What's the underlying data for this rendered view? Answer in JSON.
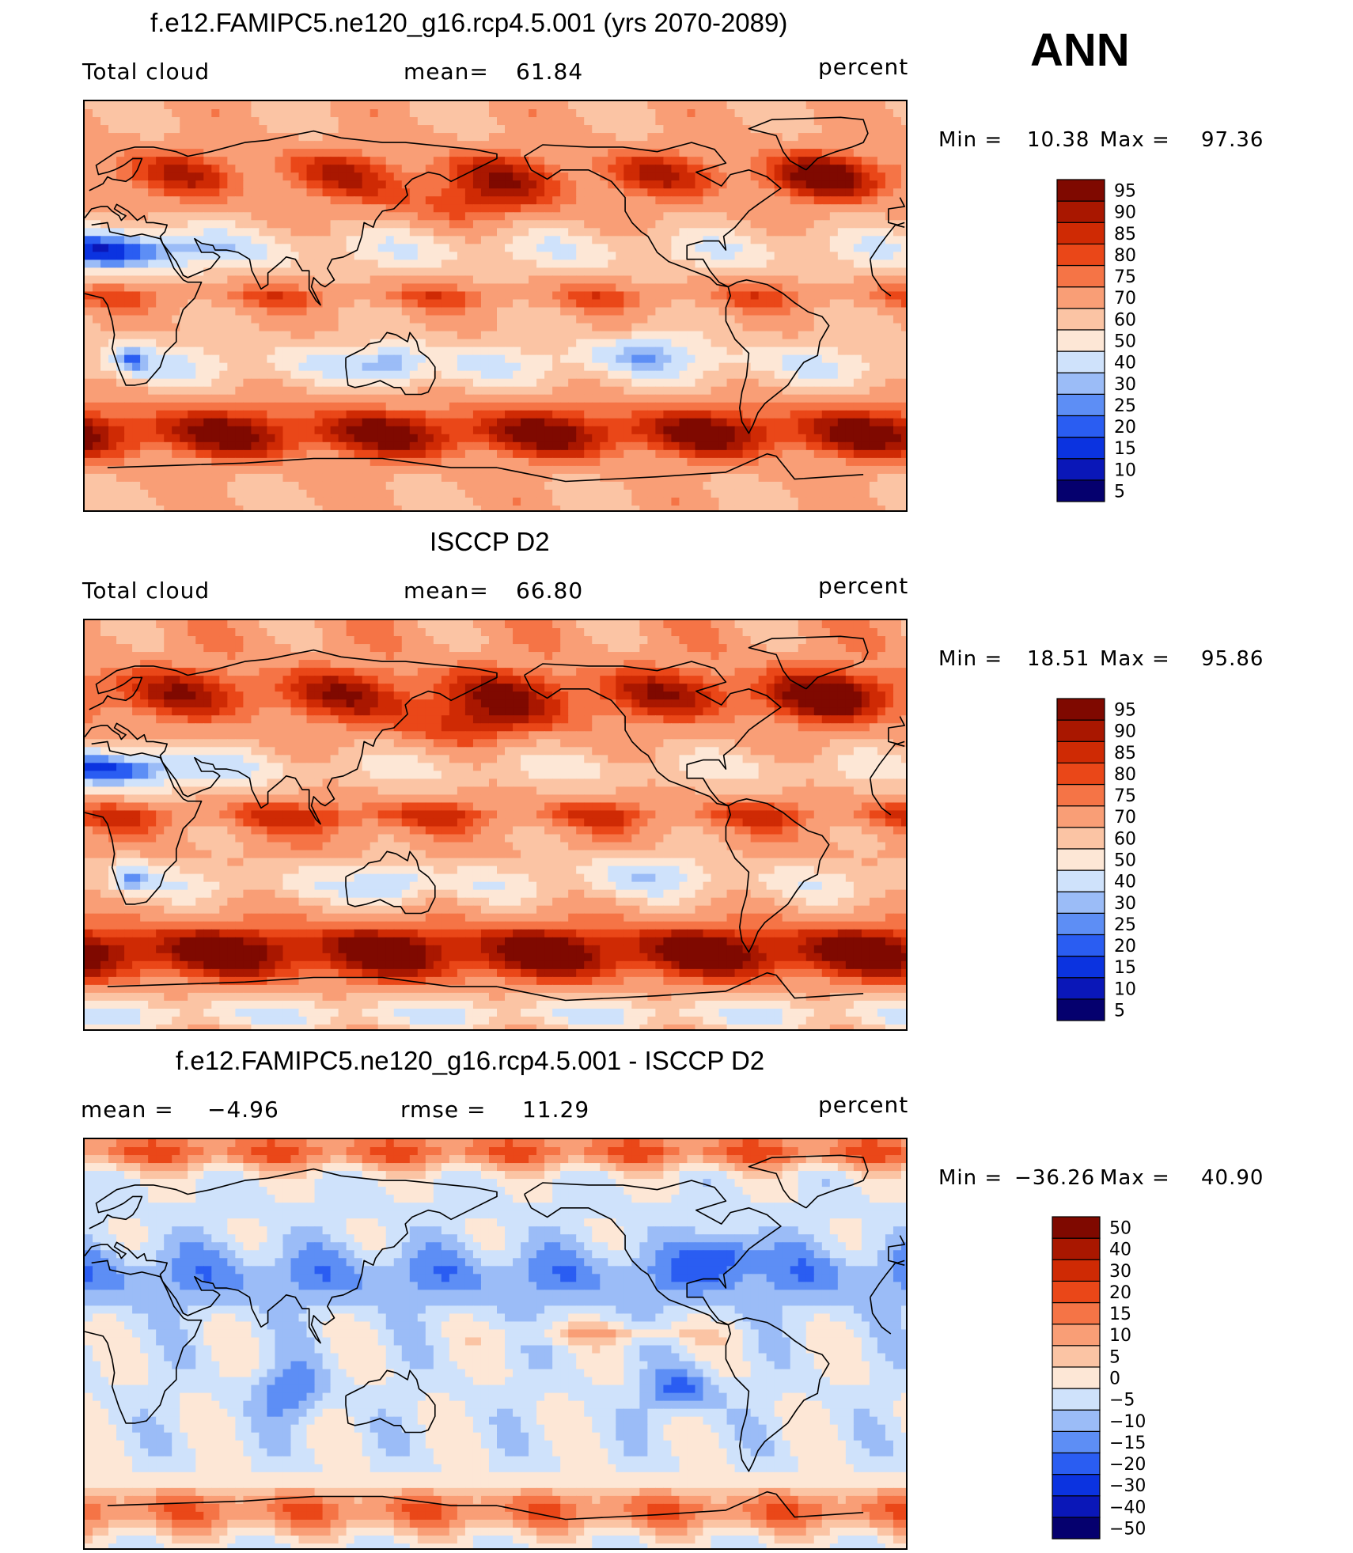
{
  "figure": {
    "season_label": "ANN",
    "colors": {
      "abs_scale": [
        "#05006e",
        "#0a17b8",
        "#0b33e0",
        "#2a5df2",
        "#5d8ef5",
        "#9bbcf7",
        "#cfe2fb",
        "#fde7d6",
        "#fbc4a4",
        "#f99e76",
        "#f57446",
        "#ea4718",
        "#cf2a04",
        "#a91700",
        "#7f0900"
      ],
      "diff_scale": [
        "#05006e",
        "#0a17b8",
        "#0b33e0",
        "#2a5df2",
        "#5d8ef5",
        "#9bbcf7",
        "#cfe2fb",
        "#fde7d6",
        "#fbc4a4",
        "#f99e76",
        "#f57446",
        "#ea4718",
        "#cf2a04",
        "#a91700",
        "#7f0900"
      ],
      "coastline": "#000000"
    }
  },
  "chart_data": [
    {
      "type": "heatmap",
      "title": "f.e12.FAMIPC5.ne120_g16.rcp4.5.001 (yrs 2070-2089)",
      "variable": "Total cloud",
      "stat_label": "mean=",
      "stat_value": "61.84",
      "units": "percent",
      "min_label": "Min =",
      "min_value": "10.38",
      "max_label": "Max =",
      "max_value": "97.36",
      "colorbar_levels": [
        "5",
        "10",
        "15",
        "20",
        "25",
        "30",
        "40",
        "50",
        "60",
        "70",
        "75",
        "80",
        "85",
        "90",
        "95"
      ]
    },
    {
      "type": "heatmap",
      "title": "ISCCP D2",
      "variable": "Total cloud",
      "stat_label": "mean=",
      "stat_value": "66.80",
      "units": "percent",
      "min_label": "Min =",
      "min_value": "18.51",
      "max_label": "Max =",
      "max_value": "95.86",
      "colorbar_levels": [
        "5",
        "10",
        "15",
        "20",
        "25",
        "30",
        "40",
        "50",
        "60",
        "70",
        "75",
        "80",
        "85",
        "90",
        "95"
      ]
    },
    {
      "type": "heatmap",
      "title": "f.e12.FAMIPC5.ne120_g16.rcp4.5.001 - ISCCP D2",
      "stat_label": "mean =",
      "stat_value": "−4.96",
      "stat2_label": "rmse =",
      "stat2_value": "11.29",
      "units": "percent",
      "min_label": "Min =",
      "min_value": "−36.26",
      "max_label": "Max =",
      "max_value": "40.90",
      "colorbar_levels": [
        "−50",
        "−40",
        "−30",
        "−20",
        "−15",
        "−10",
        "−5",
        "0",
        "5",
        "10",
        "15",
        "20",
        "30",
        "40",
        "50"
      ]
    }
  ]
}
